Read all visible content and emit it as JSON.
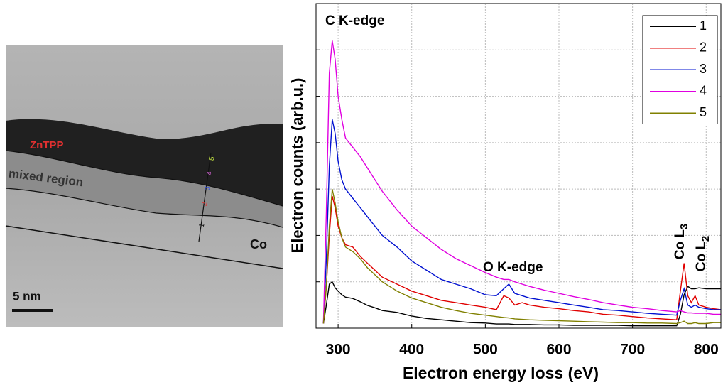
{
  "micrograph": {
    "labels": [
      "ZnTPP",
      "mixed region",
      "Co"
    ],
    "scale_bar": "5 nm",
    "markers": [
      "1",
      "2",
      "3",
      "4",
      "5"
    ]
  },
  "chart_data": {
    "type": "line",
    "xlabel": "Electron energy loss (eV)",
    "ylabel": "Electron counts (arb.u.)",
    "xlim": [
      270,
      820
    ],
    "xticks": [
      300,
      400,
      500,
      600,
      700,
      800
    ],
    "ylim": [
      0,
      7
    ],
    "yticks": [
      0,
      1,
      2,
      3,
      4,
      5,
      6,
      7
    ],
    "grid": true,
    "legend": "upper right",
    "annotations": [
      {
        "text": "C K-edge"
      },
      {
        "text": "O K-edge"
      },
      {
        "text": "Co L",
        "sub": "3"
      },
      {
        "text": "Co L",
        "sub": "2"
      }
    ],
    "x": [
      280,
      284,
      288,
      292,
      296,
      300,
      305,
      310,
      320,
      330,
      340,
      350,
      360,
      380,
      400,
      420,
      440,
      460,
      480,
      500,
      515,
      525,
      532,
      540,
      550,
      560,
      580,
      600,
      620,
      640,
      660,
      680,
      700,
      720,
      740,
      760,
      765,
      770,
      775,
      780,
      785,
      790,
      800,
      810,
      820
    ],
    "series": [
      {
        "name": "1",
        "color": "#000000",
        "values": [
          0.1,
          0.5,
          0.95,
          1.0,
          0.87,
          0.8,
          0.72,
          0.67,
          0.64,
          0.57,
          0.49,
          0.44,
          0.38,
          0.34,
          0.26,
          0.21,
          0.18,
          0.15,
          0.12,
          0.11,
          0.09,
          0.09,
          0.09,
          0.08,
          0.08,
          0.08,
          0.07,
          0.07,
          0.06,
          0.06,
          0.06,
          0.06,
          0.05,
          0.05,
          0.05,
          0.05,
          0.3,
          0.72,
          0.9,
          0.85,
          0.85,
          0.87,
          0.85,
          0.85,
          0.85
        ]
      },
      {
        "name": "2",
        "color": "#e00000",
        "values": [
          0.1,
          0.9,
          2.0,
          2.85,
          2.6,
          2.2,
          1.95,
          1.8,
          1.75,
          1.55,
          1.4,
          1.25,
          1.1,
          0.95,
          0.8,
          0.7,
          0.6,
          0.55,
          0.5,
          0.45,
          0.4,
          0.7,
          0.65,
          0.5,
          0.55,
          0.5,
          0.45,
          0.42,
          0.38,
          0.35,
          0.3,
          0.28,
          0.25,
          0.22,
          0.2,
          0.18,
          0.8,
          1.4,
          0.7,
          0.55,
          0.7,
          0.5,
          0.45,
          0.42,
          0.4
        ]
      },
      {
        "name": "3",
        "color": "#0010d0",
        "values": [
          0.1,
          1.5,
          3.5,
          4.5,
          4.2,
          3.6,
          3.2,
          3.0,
          2.8,
          2.6,
          2.4,
          2.2,
          2.0,
          1.75,
          1.45,
          1.25,
          1.05,
          0.95,
          0.85,
          0.72,
          0.7,
          0.85,
          0.95,
          0.75,
          0.7,
          0.65,
          0.6,
          0.55,
          0.5,
          0.45,
          0.4,
          0.38,
          0.35,
          0.32,
          0.3,
          0.28,
          0.6,
          0.85,
          0.5,
          0.45,
          0.5,
          0.45,
          0.42,
          0.4,
          0.4
        ]
      },
      {
        "name": "4",
        "color": "#e000e0",
        "values": [
          0.1,
          2.5,
          5.5,
          6.2,
          5.8,
          5.0,
          4.5,
          4.1,
          3.9,
          3.7,
          3.45,
          3.2,
          2.95,
          2.55,
          2.2,
          1.95,
          1.7,
          1.5,
          1.35,
          1.2,
          1.1,
          1.05,
          1.05,
          1.0,
          0.95,
          0.9,
          0.82,
          0.75,
          0.68,
          0.62,
          0.55,
          0.5,
          0.45,
          0.42,
          0.38,
          0.35,
          0.38,
          0.35,
          0.33,
          0.33,
          0.32,
          0.32,
          0.32,
          0.3,
          0.3
        ]
      },
      {
        "name": "5",
        "color": "#808000",
        "values": [
          0.1,
          0.9,
          2.2,
          3.0,
          2.7,
          2.3,
          1.95,
          1.75,
          1.65,
          1.5,
          1.3,
          1.15,
          1.0,
          0.8,
          0.65,
          0.55,
          0.45,
          0.38,
          0.32,
          0.28,
          0.25,
          0.23,
          0.22,
          0.2,
          0.19,
          0.18,
          0.17,
          0.16,
          0.15,
          0.14,
          0.13,
          0.12,
          0.12,
          0.11,
          0.11,
          0.1,
          0.12,
          0.15,
          0.1,
          0.1,
          0.12,
          0.1,
          0.1,
          0.12,
          0.12
        ]
      }
    ]
  }
}
